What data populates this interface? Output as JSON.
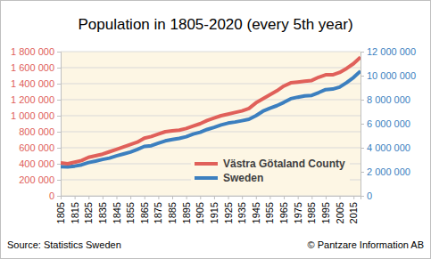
{
  "chart_data": {
    "type": "line",
    "title": "Population in 1805-2020 (every 5th year)",
    "source": "Source: Statistics Sweden",
    "credit": "© Pantzare Information AB",
    "x": [
      1805,
      1810,
      1815,
      1820,
      1825,
      1830,
      1835,
      1840,
      1845,
      1850,
      1855,
      1860,
      1865,
      1870,
      1875,
      1880,
      1885,
      1890,
      1895,
      1900,
      1905,
      1910,
      1915,
      1920,
      1925,
      1930,
      1935,
      1940,
      1945,
      1950,
      1955,
      1960,
      1965,
      1970,
      1975,
      1980,
      1985,
      1990,
      1995,
      2000,
      2005,
      2010,
      2015,
      2020
    ],
    "xlim": [
      1805,
      2020
    ],
    "xticks": [
      1805,
      1815,
      1825,
      1835,
      1845,
      1855,
      1865,
      1875,
      1885,
      1895,
      1905,
      1915,
      1925,
      1935,
      1945,
      1955,
      1965,
      1975,
      1985,
      1995,
      2005,
      2015
    ],
    "ylim": [
      0,
      1800000
    ],
    "yticks": [
      0,
      {
        "value": 200000,
        "label": "200 000"
      },
      {
        "value": 400000,
        "label": "400 000"
      },
      {
        "value": 600000,
        "label": "600 000"
      },
      {
        "value": 800000,
        "label": "800 000"
      },
      {
        "value": 1000000,
        "label": "1 000 000"
      },
      {
        "value": 1200000,
        "label": "1 200 000"
      },
      {
        "value": 1400000,
        "label": "1 400 000"
      },
      {
        "value": 1600000,
        "label": "1 600 000"
      },
      {
        "value": 1800000,
        "label": "1 800 000"
      }
    ],
    "y2lim": [
      0,
      12000000
    ],
    "y2ticks": [
      0,
      {
        "value": 2000000,
        "label": "2 000 000"
      },
      {
        "value": 4000000,
        "label": "4 000 000"
      },
      {
        "value": 6000000,
        "label": "6 000 000"
      },
      {
        "value": 8000000,
        "label": "8 000 000"
      },
      {
        "value": 10000000,
        "label": "10 000 000"
      },
      {
        "value": 12000000,
        "label": "12 000 000"
      }
    ],
    "grid": true,
    "legend": "lower right",
    "series": [
      {
        "name": "Västra Götaland County",
        "color": "#e0605a",
        "values": [
          410000,
          400000,
          420000,
          440000,
          480000,
          500000,
          520000,
          550000,
          580000,
          610000,
          640000,
          670000,
          720000,
          740000,
          770000,
          800000,
          810000,
          820000,
          840000,
          870000,
          900000,
          940000,
          970000,
          1000000,
          1020000,
          1040000,
          1060000,
          1090000,
          1160000,
          1210000,
          1260000,
          1310000,
          1370000,
          1410000,
          1420000,
          1430000,
          1440000,
          1480000,
          1510000,
          1510000,
          1540000,
          1590000,
          1650000,
          1730000
        ]
      },
      {
        "name": "Sweden",
        "color": "#3c7fbf",
        "axis": "y2",
        "values": [
          2420000,
          2400000,
          2470000,
          2580000,
          2770000,
          2890000,
          3030000,
          3140000,
          3320000,
          3480000,
          3640000,
          3860000,
          4110000,
          4170000,
          4380000,
          4570000,
          4680000,
          4780000,
          4920000,
          5140000,
          5290000,
          5520000,
          5700000,
          5900000,
          6050000,
          6140000,
          6250000,
          6370000,
          6670000,
          7040000,
          7290000,
          7500000,
          7770000,
          8080000,
          8210000,
          8320000,
          8360000,
          8590000,
          8840000,
          8880000,
          9050000,
          9420000,
          9850000,
          10380000
        ]
      }
    ]
  }
}
